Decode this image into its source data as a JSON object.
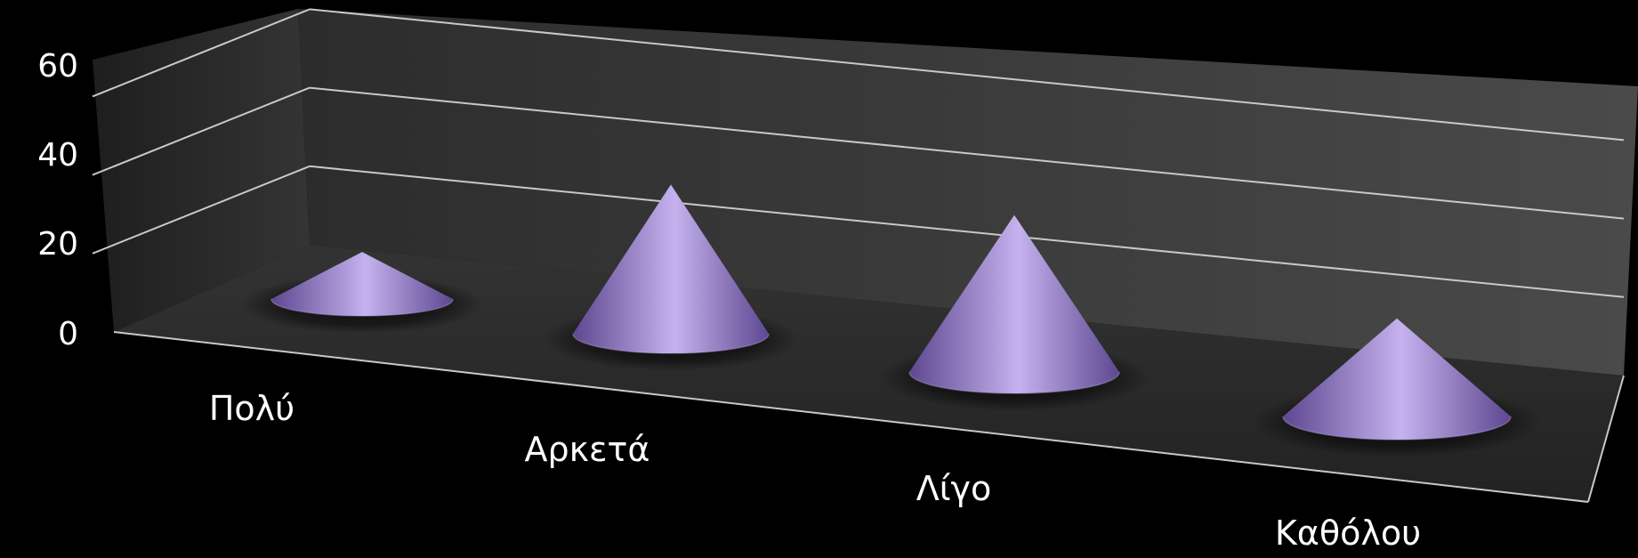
{
  "chart_data": {
    "type": "bar",
    "style": "3d-cone",
    "title": "",
    "xlabel": "",
    "ylabel": "",
    "categories": [
      "Πολύ",
      "Αρκετά",
      "Λίγο",
      "Καθόλου"
    ],
    "values": [
      12,
      38,
      40,
      25
    ],
    "ylim": [
      0,
      60
    ],
    "yticks": [
      "0",
      "20",
      "40",
      "60"
    ],
    "grid": true,
    "legend": "none",
    "colors": {
      "cone": "#9b7fd0",
      "cone_light": "#c5b2ee",
      "cone_dark": "#5e4790",
      "background": "#000000",
      "floor": "#2a2a2a",
      "wall": "#3c3c3c",
      "gridline": "#c8c8c8",
      "text": "#ffffff"
    }
  }
}
